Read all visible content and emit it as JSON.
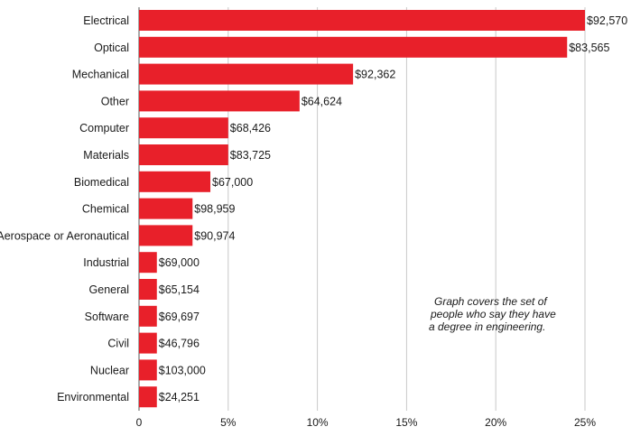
{
  "chart_data": {
    "type": "bar",
    "orientation": "horizontal",
    "categories": [
      "Electrical",
      "Optical",
      "Mechanical",
      "Other",
      "Computer",
      "Materials",
      "Biomedical",
      "Chemical",
      "Aerospace or Aeronautical",
      "Industrial",
      "General",
      "Software",
      "Civil",
      "Nuclear",
      "Environmental"
    ],
    "values": [
      25,
      24,
      12,
      9,
      5,
      5,
      4,
      3,
      3,
      1,
      1,
      1,
      1,
      1,
      1
    ],
    "data_labels": [
      "$92,570",
      "$83,565",
      "$92,362",
      "$64,624",
      "$68,426",
      "$83,725",
      "$67,000",
      "$98,959",
      "$90,974",
      "$69,000",
      "$65,154",
      "$69,697",
      "$46,796",
      "$103,000",
      "$24,251"
    ],
    "xlim": [
      0,
      25
    ],
    "xticks": [
      0,
      5,
      10,
      15,
      20,
      25
    ],
    "xtick_labels": [
      "0",
      "5%",
      "10%",
      "15%",
      "20%",
      "25%"
    ],
    "grid": "vertical",
    "bar_color": "#e8202a",
    "annotation": [
      "Graph covers the set of",
      "people who say they have",
      "a degree in engineering."
    ]
  }
}
